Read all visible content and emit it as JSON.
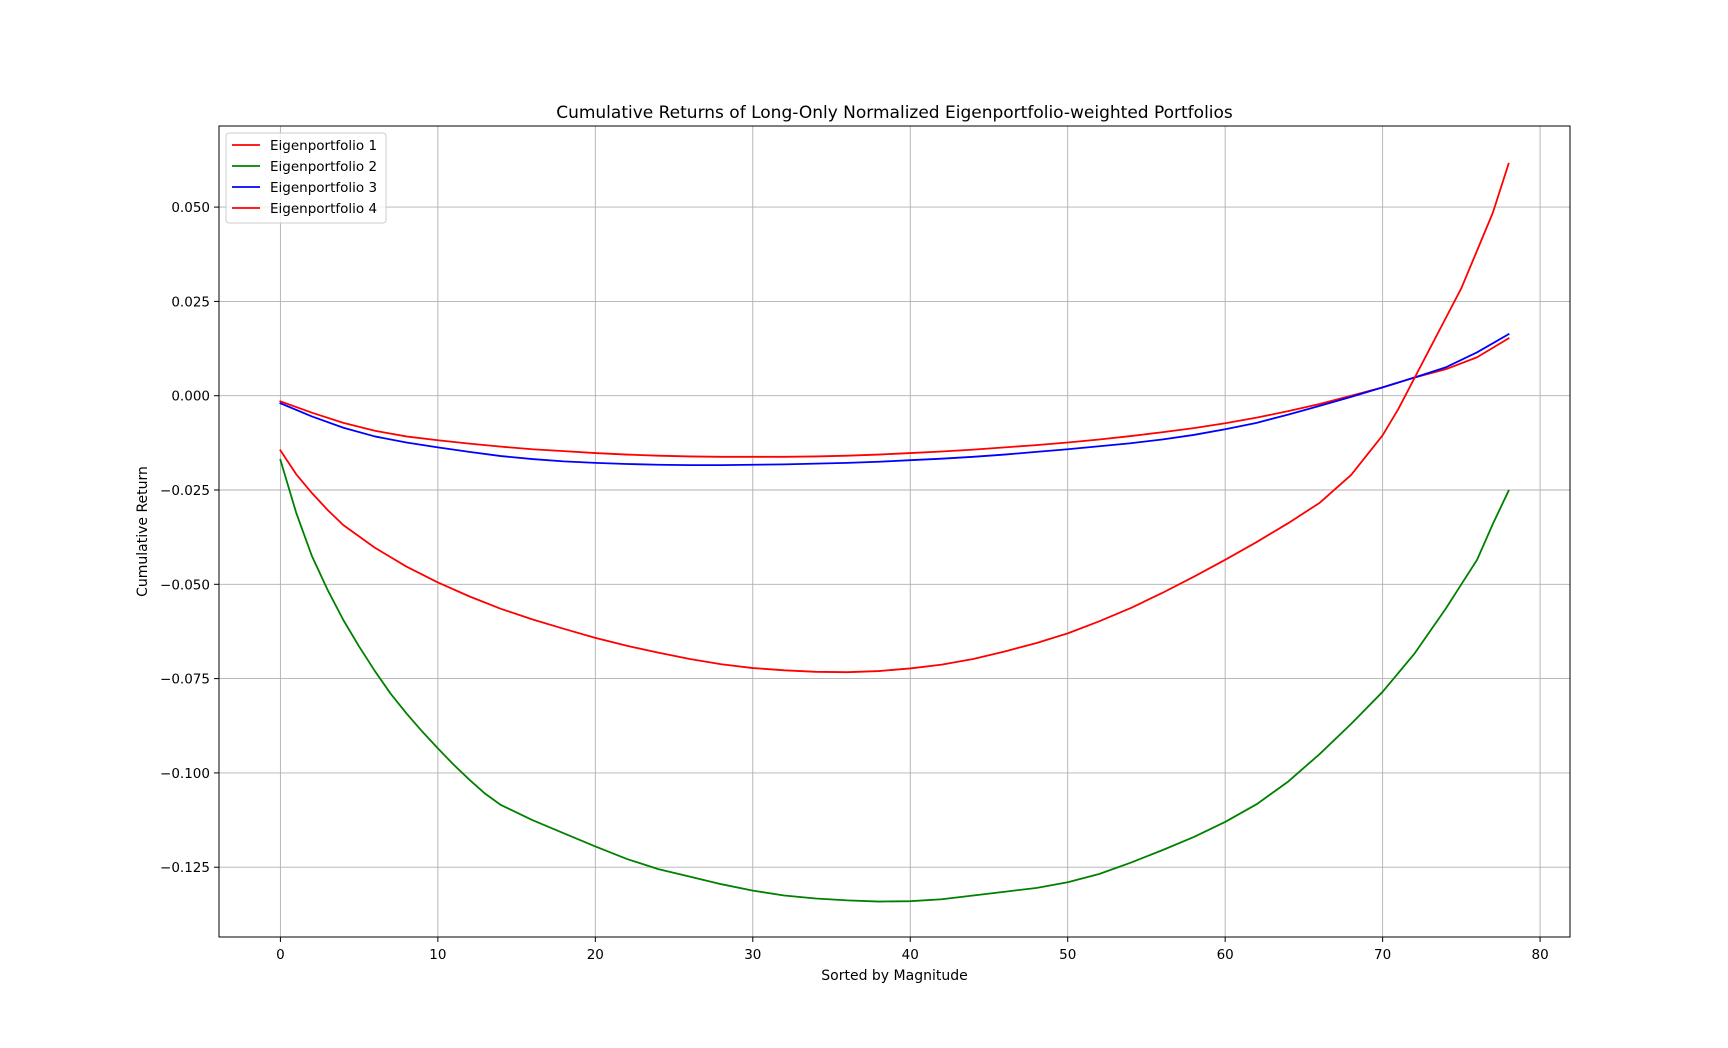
{
  "chart_data": {
    "type": "line",
    "title": "Cumulative Returns of Long-Only Normalized Eigenportfolio-weighted Portfolios",
    "xlabel": "Sorted by Magnitude",
    "ylabel": "Cumulative Return",
    "xlim": [
      -3.9,
      81.9
    ],
    "ylim": [
      -0.1435,
      0.0715
    ],
    "xticks": [
      0,
      10,
      20,
      30,
      40,
      50,
      60,
      70,
      80
    ],
    "xtick_labels": [
      "0",
      "10",
      "20",
      "30",
      "40",
      "50",
      "60",
      "70",
      "80"
    ],
    "yticks": [
      0.05,
      0.025,
      0.0,
      -0.025,
      -0.05,
      -0.075,
      -0.1,
      -0.125
    ],
    "ytick_labels": [
      "0.050",
      "0.025",
      "0.000",
      "−0.025",
      "−0.050",
      "−0.075",
      "−0.100",
      "−0.125"
    ],
    "grid": true,
    "legend_position": "top-left",
    "series": [
      {
        "name": "Eigenportfolio 1",
        "color": "#ff0000",
        "x": [
          0,
          2,
          4,
          6,
          8,
          10,
          12,
          14,
          16,
          18,
          20,
          22,
          24,
          26,
          28,
          30,
          32,
          34,
          36,
          38,
          40,
          42,
          44,
          46,
          48,
          50,
          52,
          54,
          56,
          58,
          60,
          62,
          64,
          66,
          68,
          70,
          72,
          74,
          76,
          78
        ],
        "y": [
          -0.0015,
          -0.0045,
          -0.0072,
          -0.0093,
          -0.0108,
          -0.0118,
          -0.0127,
          -0.0135,
          -0.0142,
          -0.0147,
          -0.0152,
          -0.0156,
          -0.0159,
          -0.0161,
          -0.0162,
          -0.0162,
          -0.0162,
          -0.0161,
          -0.0159,
          -0.0156,
          -0.0152,
          -0.0148,
          -0.0143,
          -0.0137,
          -0.0131,
          -0.0124,
          -0.0116,
          -0.0107,
          -0.0097,
          -0.0086,
          -0.0073,
          -0.0058,
          -0.0041,
          -0.0022,
          0.0,
          0.0022,
          0.0048,
          0.007,
          0.0102,
          0.0152
        ]
      },
      {
        "name": "Eigenportfolio 2",
        "color": "#008000",
        "x": [
          0,
          1,
          2,
          3,
          4,
          5,
          6,
          7,
          8,
          9,
          10,
          11,
          12,
          13,
          14,
          16,
          18,
          20,
          22,
          24,
          26,
          28,
          30,
          32,
          34,
          36,
          38,
          40,
          42,
          44,
          46,
          48,
          50,
          52,
          54,
          56,
          58,
          60,
          62,
          64,
          66,
          68,
          70,
          72,
          74,
          75,
          76,
          77,
          78
        ],
        "y": [
          -0.017,
          -0.031,
          -0.0425,
          -0.0515,
          -0.0595,
          -0.0665,
          -0.073,
          -0.079,
          -0.0842,
          -0.089,
          -0.0935,
          -0.0978,
          -0.1018,
          -0.1055,
          -0.1085,
          -0.1125,
          -0.116,
          -0.1195,
          -0.1228,
          -0.1255,
          -0.1275,
          -0.1295,
          -0.1312,
          -0.1325,
          -0.1333,
          -0.1338,
          -0.1341,
          -0.134,
          -0.1335,
          -0.1325,
          -0.1315,
          -0.1305,
          -0.129,
          -0.1268,
          -0.1238,
          -0.1205,
          -0.117,
          -0.113,
          -0.1083,
          -0.1023,
          -0.095,
          -0.087,
          -0.0785,
          -0.0685,
          -0.0565,
          -0.05,
          -0.0435,
          -0.034,
          -0.0252
        ]
      },
      {
        "name": "Eigenportfolio 3",
        "color": "#0000ff",
        "x": [
          0,
          2,
          4,
          6,
          8,
          10,
          12,
          14,
          16,
          18,
          20,
          22,
          24,
          26,
          28,
          30,
          32,
          34,
          36,
          38,
          40,
          42,
          44,
          46,
          48,
          50,
          52,
          54,
          56,
          58,
          60,
          62,
          64,
          66,
          68,
          70,
          72,
          74,
          76,
          78
        ],
        "y": [
          -0.002,
          -0.0055,
          -0.0085,
          -0.0108,
          -0.0124,
          -0.0137,
          -0.0149,
          -0.016,
          -0.0168,
          -0.0174,
          -0.0178,
          -0.0181,
          -0.0183,
          -0.0184,
          -0.0184,
          -0.0183,
          -0.0182,
          -0.018,
          -0.0178,
          -0.0175,
          -0.0171,
          -0.0167,
          -0.0162,
          -0.0156,
          -0.0149,
          -0.0142,
          -0.0134,
          -0.0126,
          -0.0116,
          -0.0104,
          -0.0089,
          -0.0072,
          -0.005,
          -0.0027,
          -0.0003,
          0.0022,
          0.0048,
          0.0075,
          0.0115,
          0.0163
        ]
      },
      {
        "name": "Eigenportfolio 4",
        "color": "#ff0000",
        "x": [
          0,
          1,
          2,
          3,
          4,
          6,
          8,
          10,
          12,
          14,
          16,
          18,
          20,
          22,
          24,
          26,
          28,
          30,
          32,
          34,
          36,
          38,
          40,
          42,
          44,
          46,
          48,
          50,
          52,
          54,
          56,
          58,
          60,
          62,
          64,
          66,
          68,
          70,
          71,
          72,
          73,
          74,
          75,
          76,
          77,
          78
        ],
        "y": [
          -0.0145,
          -0.0208,
          -0.0258,
          -0.0303,
          -0.0343,
          -0.0403,
          -0.0453,
          -0.0495,
          -0.0532,
          -0.0565,
          -0.0593,
          -0.0618,
          -0.0642,
          -0.0663,
          -0.0681,
          -0.0698,
          -0.0712,
          -0.0722,
          -0.0728,
          -0.0732,
          -0.0733,
          -0.073,
          -0.0723,
          -0.0713,
          -0.0698,
          -0.0678,
          -0.0656,
          -0.063,
          -0.0598,
          -0.0563,
          -0.0523,
          -0.048,
          -0.0435,
          -0.0388,
          -0.0338,
          -0.0284,
          -0.021,
          -0.0105,
          -0.0035,
          0.0045,
          0.0125,
          0.0205,
          0.0285,
          0.0385,
          0.0485,
          0.0615
        ]
      }
    ]
  }
}
